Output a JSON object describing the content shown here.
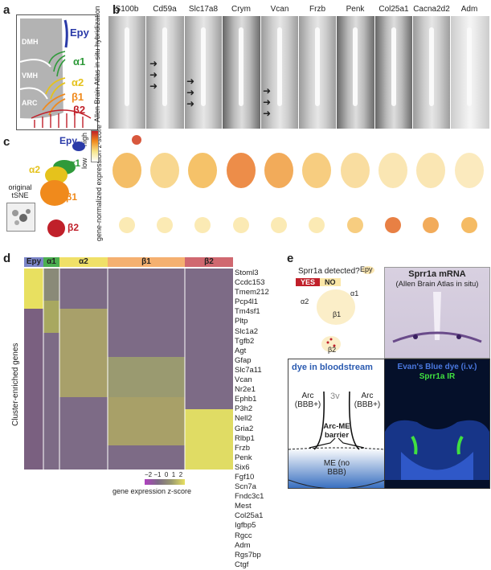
{
  "panels": {
    "a": "a",
    "b": "b",
    "c": "c",
    "d": "d",
    "e": "e"
  },
  "panel_a": {
    "labels": {
      "dmh": "DMH",
      "vmh": "VMH",
      "arc": "ARC",
      "epy": "Epy",
      "a1": "α1",
      "a2": "α2",
      "b1": "β1",
      "b2": "β2"
    },
    "colors": {
      "epy": "#2a3aa8",
      "a1": "#2f9a3a",
      "a2": "#e5c21c",
      "b1": "#f08a1c",
      "b2": "#c0202a"
    }
  },
  "panel_b": {
    "genes": [
      "S100b",
      "Cd59a",
      "Slc17a8",
      "Crym",
      "Vcan",
      "Frzb",
      "Penk",
      "Col25a1",
      "Cacna2d2",
      "Adm"
    ],
    "ish_side_label": "Allen Brain Atlas in situ hybridization",
    "expr_side_label": "gene-normalized expression z-score",
    "scale_high": "high",
    "scale_low": "low"
  },
  "panel_c": {
    "labels": {
      "epy": "Epy",
      "a1": "α1",
      "a2": "α2",
      "b1": "β1",
      "b2": "β2"
    },
    "original_label": "original tSNE"
  },
  "panel_d": {
    "clusters": [
      {
        "name": "Epy",
        "color": "#7b85c8"
      },
      {
        "name": "α1",
        "color": "#4caf50"
      },
      {
        "name": "α2",
        "color": "#f0e068"
      },
      {
        "name": "β1",
        "color": "#f5b070"
      },
      {
        "name": "β2",
        "color": "#d06870"
      }
    ],
    "genes": [
      "Stoml3",
      "Ccdc153",
      "Tmem212",
      "Pcp4l1",
      "Tm4sf1",
      "Pltp",
      "Slc1a2",
      "Tgfb2",
      "Agt",
      "Gfap",
      "Slc7a11",
      "Vcan",
      "Nr2e1",
      "Ephb1",
      "P3h2",
      "Nell2",
      "Gria2",
      "Rlbp1",
      "Frzb",
      "Penk",
      "Six6",
      "Fgf10",
      "Scn7a",
      "Fndc3c1",
      "Mest",
      "Col25a1",
      "Igfbp5",
      "Rgcc",
      "Adm",
      "Rgs7bp",
      "Ctgf"
    ],
    "y_axis_label": "Cluster-enriched genes",
    "colorbar_ticks": "−2 −1  0  1  2",
    "colorbar_label": "gene expression z-score"
  },
  "panel_e": {
    "question": "Sprr1a detected?",
    "yes": "YES",
    "no": "NO",
    "tsne_labels": {
      "epy": "Epy",
      "a1": "α1",
      "a2": "α2",
      "b1": "β1",
      "b2": "β2"
    },
    "mrna_title": "Sprr1a mRNA",
    "mrna_sub": "(Allen Brain Atlas in situ)",
    "dye_title": "dye in bloodstream",
    "v3": "3v",
    "arc_left": "Arc (BBB+)",
    "arc_right": "Arc (BBB+)",
    "barrier": "Arc-ME barrier",
    "me": "ME (no BBB)",
    "evans": "Evan's Blue dye (i.v.)",
    "ir": "Sprr1a IR"
  }
}
